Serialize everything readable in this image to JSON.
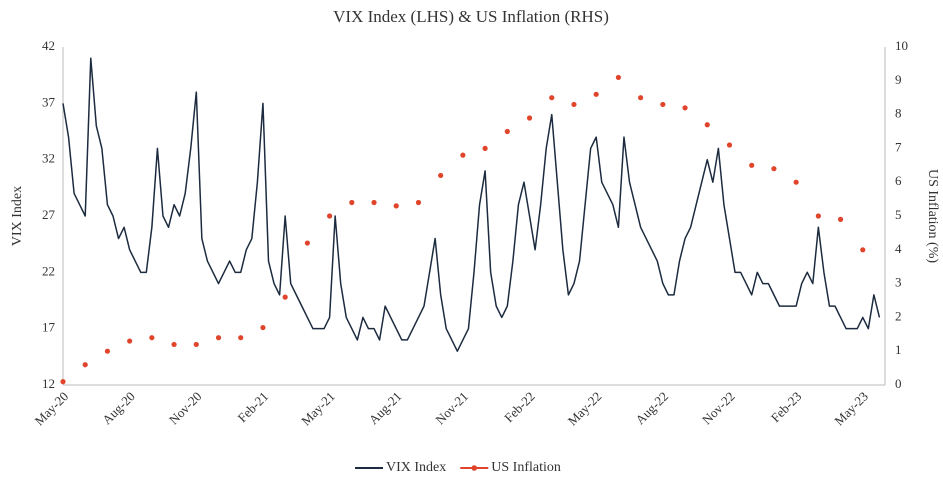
{
  "chart_data": {
    "type": "line",
    "title": "VIX Index (LHS) & US Inflation (RHS)",
    "y_label": "VIX Index",
    "y2_label": "US Inflation (%)",
    "categories": [
      "May-20",
      null,
      null,
      null,
      null,
      null,
      null,
      null,
      null,
      null,
      null,
      null,
      "Aug-20",
      null,
      null,
      null,
      null,
      null,
      null,
      null,
      null,
      null,
      null,
      null,
      "Nov-20",
      null,
      null,
      null,
      null,
      null,
      null,
      null,
      null,
      null,
      null,
      null,
      "Feb-21",
      null,
      null,
      null,
      null,
      null,
      null,
      null,
      null,
      null,
      null,
      null,
      "May-21",
      null,
      null,
      null,
      null,
      null,
      null,
      null,
      null,
      null,
      null,
      null,
      "Aug-21",
      null,
      null,
      null,
      null,
      null,
      null,
      null,
      null,
      null,
      null,
      null,
      "Nov-21",
      null,
      null,
      null,
      null,
      null,
      null,
      null,
      null,
      null,
      null,
      null,
      "Feb-22",
      null,
      null,
      null,
      null,
      null,
      null,
      null,
      null,
      null,
      null,
      null,
      "May-22",
      null,
      null,
      null,
      null,
      null,
      null,
      null,
      null,
      null,
      null,
      null,
      "Aug-22",
      null,
      null,
      null,
      null,
      null,
      null,
      null,
      null,
      null,
      null,
      null,
      "Nov-22",
      null,
      null,
      null,
      null,
      null,
      null,
      null,
      null,
      null,
      null,
      null,
      "Feb-23",
      null,
      null,
      null,
      null,
      null,
      null,
      null,
      null,
      null,
      null,
      null,
      "May-23",
      null,
      null,
      null
    ],
    "series": [
      {
        "name": "VIX Index",
        "color": "#1c2b3f",
        "style": "line",
        "values": [
          37,
          34,
          29,
          28,
          27,
          41,
          35,
          33,
          28,
          27,
          25,
          26,
          24,
          23,
          22,
          22,
          26,
          33,
          27,
          26,
          28,
          27,
          29,
          33,
          38,
          25,
          23,
          22,
          21,
          22,
          23,
          22,
          22,
          24,
          25,
          30,
          37,
          23,
          21,
          20,
          27,
          21,
          20,
          19,
          18,
          17,
          17,
          17,
          18,
          27,
          21,
          18,
          17,
          16,
          18,
          17,
          17,
          16,
          19,
          18,
          17,
          16,
          16,
          17,
          18,
          19,
          22,
          25,
          20,
          17,
          16,
          15,
          16,
          17,
          22,
          28,
          31,
          22,
          19,
          18,
          19,
          23,
          28,
          30,
          27,
          24,
          28,
          33,
          36,
          30,
          24,
          20,
          21,
          23,
          28,
          33,
          34,
          30,
          29,
          28,
          26,
          34,
          30,
          28,
          26,
          25,
          24,
          23,
          21,
          20,
          20,
          23,
          25,
          26,
          28,
          30,
          32,
          30,
          33,
          28,
          25,
          22,
          22,
          21,
          20,
          22,
          21,
          21,
          20,
          19,
          19,
          19,
          19,
          21,
          22,
          21,
          26,
          22,
          19,
          19,
          18,
          17,
          17,
          17,
          18,
          17,
          20,
          18
        ]
      },
      {
        "name": "US Inflation",
        "color": "#e0452b",
        "style": "markers",
        "axis": "y2",
        "values": [
          0.1,
          null,
          null,
          null,
          0.6,
          null,
          null,
          null,
          1.0,
          null,
          null,
          null,
          1.3,
          null,
          null,
          null,
          1.4,
          null,
          null,
          null,
          1.2,
          null,
          null,
          null,
          1.2,
          null,
          null,
          null,
          1.4,
          null,
          null,
          null,
          1.4,
          null,
          null,
          null,
          1.7,
          null,
          null,
          null,
          2.6,
          null,
          null,
          null,
          4.2,
          null,
          null,
          null,
          5.0,
          null,
          null,
          null,
          5.4,
          null,
          null,
          null,
          5.4,
          null,
          null,
          null,
          5.3,
          null,
          null,
          null,
          5.4,
          null,
          null,
          null,
          6.2,
          null,
          null,
          null,
          6.8,
          null,
          null,
          null,
          7.0,
          null,
          null,
          null,
          7.5,
          null,
          null,
          null,
          7.9,
          null,
          null,
          null,
          8.5,
          null,
          null,
          null,
          8.3,
          null,
          null,
          null,
          8.6,
          null,
          null,
          null,
          9.1,
          null,
          null,
          null,
          8.5,
          null,
          null,
          null,
          8.3,
          null,
          null,
          null,
          8.2,
          null,
          null,
          null,
          7.7,
          null,
          null,
          null,
          7.1,
          null,
          null,
          null,
          6.5,
          null,
          null,
          null,
          6.4,
          null,
          null,
          null,
          6.0,
          null,
          null,
          null,
          5.0,
          null,
          null,
          null,
          4.9,
          null,
          null,
          null,
          4.0,
          null,
          null,
          null
        ]
      }
    ],
    "ylim": [
      12,
      42
    ],
    "yticks": [
      12,
      17,
      22,
      27,
      32,
      37,
      42
    ],
    "y2lim": [
      0,
      10
    ],
    "y2ticks": [
      0,
      1,
      2,
      3,
      4,
      5,
      6,
      7,
      8,
      9,
      10
    ],
    "grid": false,
    "legend": "bottom"
  }
}
